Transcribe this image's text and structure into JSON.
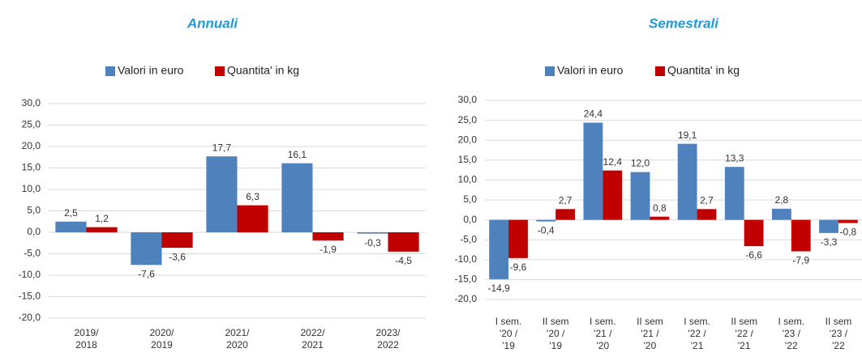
{
  "chart_data": [
    {
      "type": "bar",
      "title": "Annuali",
      "categories": [
        "2019/\n2018",
        "2020/\n2019",
        "2021/\n2020",
        "2022/\n2021",
        "2023/\n2022"
      ],
      "series": [
        {
          "name": "Valori in euro",
          "color": "#4f81bd",
          "values": [
            2.5,
            -7.6,
            17.7,
            16.1,
            -0.3
          ],
          "value_labels": [
            "2,5",
            "-7,6",
            "17,7",
            "16,1",
            "-0,3"
          ]
        },
        {
          "name": "Quantita' in kg",
          "color": "#c00000",
          "values": [
            1.2,
            -3.6,
            6.3,
            -1.9,
            -4.5
          ],
          "value_labels": [
            "1,2",
            "-3,6",
            "6,3",
            "-1,9",
            "-4,5"
          ]
        }
      ],
      "ylim": [
        -20,
        30
      ],
      "yticks": [
        {
          "value": -20,
          "label": "-20,0"
        },
        {
          "value": -15,
          "label": "-15,0"
        },
        {
          "value": -10,
          "label": "-10,0"
        },
        {
          "value": -5,
          "label": "-5,0"
        },
        {
          "value": 0,
          "label": "0,0"
        },
        {
          "value": 5,
          "label": "5,0"
        },
        {
          "value": 10,
          "label": "10,0"
        },
        {
          "value": 15,
          "label": "15,0"
        },
        {
          "value": 20,
          "label": "20,0"
        },
        {
          "value": 25,
          "label": "25,0"
        },
        {
          "value": 30,
          "label": "30,0"
        }
      ],
      "grid": true,
      "legend": "top"
    },
    {
      "type": "bar",
      "title": "Semestrali",
      "categories": [
        "I sem.\n'20 /\n'19",
        "II sem\n'20 /\n'19",
        "I sem.\n'21 /\n'20",
        "II sem\n'21 /\n'20",
        "I sem.\n'22 /\n'21",
        "II sem\n'22 /\n'21",
        "I sem.\n'23 /\n'22",
        "II sem\n'23 /\n'22"
      ],
      "series": [
        {
          "name": "Valori in euro",
          "color": "#4f81bd",
          "values": [
            -14.9,
            -0.4,
            24.4,
            12.0,
            19.1,
            13.3,
            2.8,
            -3.3
          ],
          "value_labels": [
            "-14,9",
            "-0,4",
            "24,4",
            "12,0",
            "19,1",
            "13,3",
            "2,8",
            "-3,3"
          ]
        },
        {
          "name": "Quantita' in kg",
          "color": "#c00000",
          "values": [
            -9.6,
            2.7,
            12.4,
            0.8,
            2.7,
            -6.6,
            -7.9,
            -0.8
          ],
          "value_labels": [
            "-9,6",
            "2,7",
            "12,4",
            "0,8",
            "2,7",
            "-6,6",
            "-7,9",
            "-0,8"
          ]
        }
      ],
      "ylim": [
        -20,
        30
      ],
      "yticks": [
        {
          "value": -20,
          "label": "-20,0"
        },
        {
          "value": -15,
          "label": "-15,0"
        },
        {
          "value": -10,
          "label": "-10,0"
        },
        {
          "value": -5,
          "label": "-5,0"
        },
        {
          "value": 0,
          "label": "0,0"
        },
        {
          "value": 5,
          "label": "5,0"
        },
        {
          "value": 10,
          "label": "10,0"
        },
        {
          "value": 15,
          "label": "15,0"
        },
        {
          "value": 20,
          "label": "20,0"
        },
        {
          "value": 25,
          "label": "25,0"
        },
        {
          "value": 30,
          "label": "30,0"
        }
      ],
      "grid": true,
      "legend": "top"
    }
  ]
}
